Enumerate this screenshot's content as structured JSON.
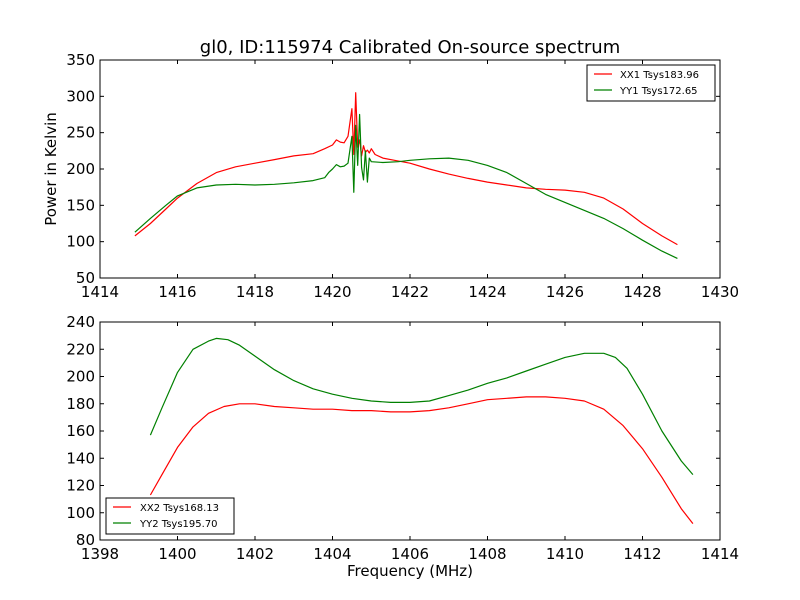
{
  "chart_data": [
    {
      "type": "line",
      "title": "gl0, ID:115974 Calibrated On-source spectrum",
      "xlabel": "",
      "ylabel": "Power in Kelvin",
      "xlim": [
        1414,
        1430
      ],
      "ylim": [
        50,
        350
      ],
      "x_ticks": [
        "1414",
        "1416",
        "1418",
        "1420",
        "1422",
        "1424",
        "1426",
        "1428",
        "1430"
      ],
      "y_ticks": [
        "50",
        "100",
        "150",
        "200",
        "250",
        "300",
        "350"
      ],
      "grid": false,
      "legend_position": "top-right",
      "series": [
        {
          "name": "XX1 Tsys183.96",
          "color": "#ff0000",
          "x": [
            1414.9,
            1415.3,
            1415.7,
            1416.0,
            1416.5,
            1417.0,
            1417.5,
            1418.0,
            1418.5,
            1419.0,
            1419.5,
            1419.8,
            1420.0,
            1420.1,
            1420.2,
            1420.3,
            1420.4,
            1420.5,
            1420.55,
            1420.6,
            1420.65,
            1420.7,
            1420.75,
            1420.8,
            1420.85,
            1420.9,
            1420.95,
            1421.0,
            1421.1,
            1421.3,
            1421.6,
            1422.0,
            1422.5,
            1423.0,
            1423.5,
            1424.0,
            1424.5,
            1425.0,
            1425.5,
            1426.0,
            1426.5,
            1427.0,
            1427.5,
            1428.0,
            1428.5,
            1428.9
          ],
          "y": [
            108,
            125,
            145,
            160,
            180,
            195,
            203,
            208,
            213,
            218,
            221,
            228,
            233,
            240,
            237,
            236,
            245,
            283,
            220,
            305,
            230,
            240,
            218,
            232,
            223,
            226,
            222,
            228,
            220,
            215,
            212,
            208,
            200,
            193,
            187,
            182,
            178,
            174,
            172,
            171,
            168,
            160,
            145,
            125,
            108,
            96
          ]
        },
        {
          "name": "YY1 Tsys172.65",
          "color": "#008000",
          "x": [
            1414.9,
            1415.3,
            1415.7,
            1416.0,
            1416.5,
            1417.0,
            1417.5,
            1418.0,
            1418.5,
            1419.0,
            1419.5,
            1419.8,
            1419.9,
            1420.0,
            1420.1,
            1420.2,
            1420.3,
            1420.4,
            1420.5,
            1420.55,
            1420.6,
            1420.65,
            1420.7,
            1420.75,
            1420.8,
            1420.85,
            1420.9,
            1420.95,
            1421.0,
            1421.3,
            1421.7,
            1422.0,
            1422.5,
            1423.0,
            1423.5,
            1424.0,
            1424.5,
            1425.0,
            1425.5,
            1426.0,
            1426.5,
            1427.0,
            1427.5,
            1428.0,
            1428.5,
            1428.9
          ],
          "y": [
            113,
            132,
            150,
            163,
            174,
            178,
            179,
            178,
            179,
            181,
            184,
            188,
            195,
            200,
            206,
            203,
            204,
            208,
            245,
            168,
            260,
            205,
            275,
            202,
            185,
            225,
            182,
            215,
            210,
            209,
            210,
            212,
            214,
            215,
            212,
            205,
            195,
            180,
            165,
            154,
            143,
            132,
            118,
            102,
            87,
            77
          ]
        }
      ]
    },
    {
      "type": "line",
      "title": "",
      "xlabel": "Frequency (MHz)",
      "ylabel": "",
      "xlim": [
        1398,
        1414
      ],
      "ylim": [
        80,
        240
      ],
      "x_ticks": [
        "1398",
        "1400",
        "1402",
        "1404",
        "1406",
        "1408",
        "1410",
        "1412",
        "1414"
      ],
      "y_ticks": [
        "80",
        "100",
        "120",
        "140",
        "160",
        "180",
        "200",
        "220",
        "240"
      ],
      "grid": false,
      "legend_position": "bottom-left",
      "series": [
        {
          "name": "XX2 Tsys168.13",
          "color": "#ff0000",
          "x": [
            1399.3,
            1399.6,
            1400.0,
            1400.4,
            1400.8,
            1401.2,
            1401.6,
            1402.0,
            1402.5,
            1403.0,
            1403.5,
            1404.0,
            1404.5,
            1405.0,
            1405.5,
            1406.0,
            1406.5,
            1407.0,
            1407.5,
            1408.0,
            1408.5,
            1409.0,
            1409.5,
            1410.0,
            1410.5,
            1411.0,
            1411.5,
            1412.0,
            1412.5,
            1413.0,
            1413.3
          ],
          "y": [
            113,
            128,
            148,
            163,
            173,
            178,
            180,
            180,
            178,
            177,
            176,
            176,
            175,
            175,
            174,
            174,
            175,
            177,
            180,
            183,
            184,
            185,
            185,
            184,
            182,
            176,
            164,
            147,
            126,
            103,
            92
          ]
        },
        {
          "name": "YY2 Tsys195.70",
          "color": "#008000",
          "x": [
            1399.3,
            1399.6,
            1400.0,
            1400.4,
            1400.8,
            1401.0,
            1401.3,
            1401.6,
            1402.0,
            1402.5,
            1403.0,
            1403.5,
            1404.0,
            1404.5,
            1405.0,
            1405.5,
            1406.0,
            1406.5,
            1407.0,
            1407.5,
            1408.0,
            1408.5,
            1409.0,
            1409.5,
            1410.0,
            1410.5,
            1411.0,
            1411.3,
            1411.6,
            1412.0,
            1412.5,
            1413.0,
            1413.3
          ],
          "y": [
            157,
            177,
            203,
            220,
            226,
            228,
            227,
            223,
            215,
            205,
            197,
            191,
            187,
            184,
            182,
            181,
            181,
            182,
            186,
            190,
            195,
            199,
            204,
            209,
            214,
            217,
            217,
            214,
            206,
            187,
            160,
            138,
            128
          ]
        }
      ]
    }
  ]
}
